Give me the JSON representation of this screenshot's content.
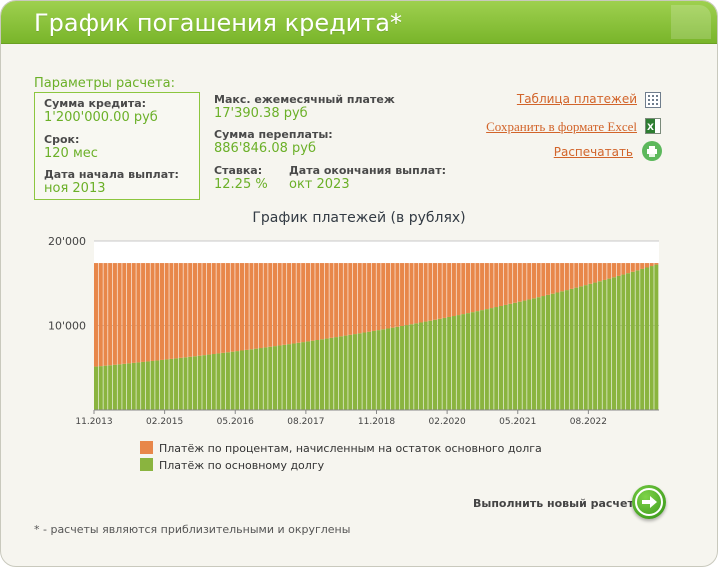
{
  "header": {
    "title": "График погашения кредита*"
  },
  "params": {
    "title": "Параметры расчета:",
    "amount_label": "Сумма кредита:",
    "amount_value": "1'200'000.00 руб",
    "term_label": "Срок:",
    "term_value": "120 мес",
    "start_label": "Дата начала выплат:",
    "start_value": "ноя 2013"
  },
  "results": {
    "max_payment_label": "Макс. ежемесячный платеж",
    "max_payment_value": "17'390.38 руб",
    "overpay_label": "Сумма переплаты:",
    "overpay_value": "886'846.08 руб",
    "rate_label": "Ставка:",
    "rate_value": "12.25 %",
    "end_label": "Дата окончания выплат:",
    "end_value": "окт 2023"
  },
  "actions": {
    "table_link": "Таблица платежей",
    "excel_link": "Сохранить в формате Excel",
    "print_link": "Распечатать",
    "table_icon": "table-grid-icon",
    "excel_icon": "excel-icon",
    "print_icon": "printer-icon"
  },
  "chart_data": {
    "type": "bar",
    "stacked": true,
    "title": "График платежей (в рублях)",
    "y_ticks": [
      "20'000",
      "10'000"
    ],
    "y_tick_values": [
      20000,
      10000
    ],
    "ylim": [
      0,
      20000
    ],
    "x_tick_labels": [
      "11.2013",
      "02.2015",
      "05.2016",
      "08.2017",
      "11.2018",
      "02.2020",
      "05.2021",
      "08.2022"
    ],
    "num_periods": 120,
    "total_payment": 17390,
    "series": [
      {
        "name": "Платёж по процентам, начисленным на остаток основного долга",
        "color": "#e8874a",
        "start": 12250,
        "end": 180
      },
      {
        "name": "Платёж по основному долгу",
        "color": "#8ab43f",
        "start": 5140,
        "end": 17210
      }
    ],
    "grid": true,
    "legend": "bottom"
  },
  "footer": {
    "new_calc_label": "Выполнить новый расчет",
    "footnote": "* - расчеты являются приблизительными и округлены"
  },
  "colors": {
    "accent": "#79b52a",
    "link": "#d2642a",
    "value": "#6bb028"
  }
}
